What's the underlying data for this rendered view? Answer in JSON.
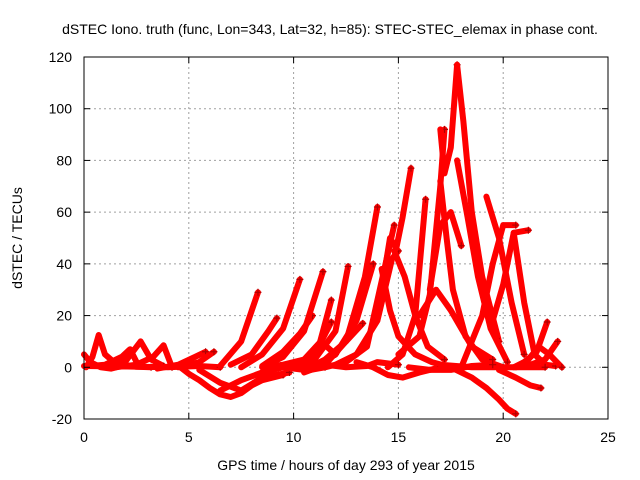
{
  "chart_data": {
    "type": "scatter",
    "title": "dSTEC Iono. truth (func, Lon=343, Lat=32, h=85): STEC-STEC_elemax in phase cont.",
    "xlabel": "GPS time / hours of day 293 of year 2015",
    "ylabel": "dSTEC  / TECUs",
    "xlim": [
      0,
      25
    ],
    "ylim": [
      -20,
      120
    ],
    "xticks": [
      0,
      5,
      10,
      15,
      20,
      25
    ],
    "yticks": [
      -20,
      0,
      20,
      40,
      60,
      80,
      100,
      120
    ],
    "grid": true,
    "marker": "plus",
    "series_color": "#ff0000",
    "series": [
      {
        "x": [
          0.0,
          0.3,
          0.8,
          1.3,
          1.8
        ],
        "y": [
          5.0,
          2.0,
          0.0,
          -0.5,
          0.5
        ]
      },
      {
        "x": [
          0.1,
          0.4,
          0.7,
          1.0,
          1.5,
          2.5,
          3.2
        ],
        "y": [
          0.0,
          4.0,
          12.5,
          5.0,
          1.5,
          0.2,
          0.0
        ]
      },
      {
        "x": [
          0.3,
          1.0,
          1.8,
          2.2,
          2.6
        ],
        "y": [
          0.5,
          1.0,
          4.0,
          7.0,
          0.5
        ]
      },
      {
        "x": [
          1.0,
          2.0,
          2.7,
          3.2,
          3.8
        ],
        "y": [
          0.3,
          2.5,
          10.0,
          3.0,
          0.5
        ]
      },
      {
        "x": [
          1.5,
          2.5,
          3.3,
          3.8,
          4.2
        ],
        "y": [
          0.0,
          1.0,
          4.0,
          8.5,
          0.0
        ]
      },
      {
        "x": [
          0.0,
          2.0,
          4.0,
          5.5,
          6.5
        ],
        "y": [
          0.5,
          0.3,
          0.0,
          0.5,
          0.0
        ]
      },
      {
        "x": [
          3.5,
          4.5,
          5.3,
          5.8
        ],
        "y": [
          -0.5,
          1.0,
          4.0,
          6.0
        ]
      },
      {
        "x": [
          4.5,
          5.5,
          6.2
        ],
        "y": [
          0.0,
          2.0,
          6.0
        ]
      },
      {
        "x": [
          4.6,
          5.0,
          5.5,
          6.0,
          6.5,
          7.0,
          7.5,
          8.0,
          8.5,
          9.5
        ],
        "y": [
          0.0,
          -2.5,
          -5.0,
          -8.0,
          -10.5,
          -11.5,
          -10.0,
          -7.0,
          -5.0,
          -3.0
        ]
      },
      {
        "x": [
          5.5,
          6.5,
          7.5,
          8.5,
          9.8
        ],
        "y": [
          -1.0,
          -6.0,
          -9.0,
          -4.0,
          -2.0
        ]
      },
      {
        "x": [
          6.5,
          7.5,
          8.5,
          9.5,
          10.5,
          11.5
        ],
        "y": [
          -9.0,
          -5.0,
          -2.0,
          0.0,
          0.0,
          0.0
        ]
      },
      {
        "x": [
          6.5,
          7.5,
          8.3
        ],
        "y": [
          0.5,
          10.0,
          29.0
        ]
      },
      {
        "x": [
          7.0,
          8.0,
          8.8,
          9.2
        ],
        "y": [
          1.0,
          5.0,
          14.0,
          19.0
        ]
      },
      {
        "x": [
          7.5,
          8.5,
          9.5,
          10.3
        ],
        "y": [
          0.0,
          5.0,
          15.0,
          34.0
        ]
      },
      {
        "x": [
          8.5,
          9.5,
          10.3,
          10.9
        ],
        "y": [
          0.5,
          6.0,
          13.0,
          20.0
        ]
      },
      {
        "x": [
          8.5,
          9.5,
          10.5,
          11.4
        ],
        "y": [
          0.0,
          4.0,
          14.0,
          37.0
        ]
      },
      {
        "x": [
          8.5,
          9.5,
          10.5,
          11.3,
          12.0
        ],
        "y": [
          0.0,
          1.0,
          3.0,
          10.0,
          5.0
        ]
      },
      {
        "x": [
          9.0,
          10.0,
          11.0,
          11.8
        ],
        "y": [
          0.0,
          1.0,
          5.0,
          17.5
        ]
      },
      {
        "x": [
          9.0,
          10.0,
          11.0,
          11.8
        ],
        "y": [
          0.5,
          0.5,
          2.0,
          26.0
        ]
      },
      {
        "x": [
          10.0,
          11.0,
          12.0,
          12.6
        ],
        "y": [
          0.0,
          3.0,
          14.0,
          39.0
        ]
      },
      {
        "x": [
          9.5,
          10.5,
          11.5,
          12.5,
          13.3
        ],
        "y": [
          0.0,
          -1.0,
          3.0,
          10.0,
          17.0
        ]
      },
      {
        "x": [
          10.5,
          11.5,
          12.5,
          13.4,
          14.0
        ],
        "y": [
          -2.0,
          1.0,
          10.0,
          35.0,
          62.0
        ]
      },
      {
        "x": [
          11.0,
          12.0,
          13.0,
          13.8
        ],
        "y": [
          0.0,
          5.0,
          18.0,
          40.0
        ]
      },
      {
        "x": [
          10.8,
          11.5,
          12.5,
          13.5,
          14.8
        ],
        "y": [
          -1.0,
          0.0,
          2.0,
          8.0,
          55.0
        ]
      },
      {
        "x": [
          12.0,
          13.0,
          14.0,
          14.7,
          15.0
        ],
        "y": [
          1.0,
          5.0,
          18.0,
          42.0,
          45.0
        ]
      },
      {
        "x": [
          14.3,
          14.6,
          14.9,
          15.2,
          15.6
        ],
        "y": [
          35.0,
          50.0,
          46.0,
          58.0,
          77.0
        ]
      },
      {
        "x": [
          14.8,
          15.3,
          15.8,
          16.4,
          17.2
        ],
        "y": [
          45.0,
          35.0,
          20.0,
          8.0,
          3.0
        ]
      },
      {
        "x": [
          14.2,
          14.6,
          15.0,
          15.8,
          16.6,
          17.5
        ],
        "y": [
          38.0,
          22.0,
          12.0,
          5.0,
          2.0,
          0.0
        ]
      },
      {
        "x": [
          13.0,
          13.8,
          14.5,
          15.2,
          16.0,
          17.0
        ],
        "y": [
          2.0,
          0.0,
          -3.0,
          -4.0,
          -2.0,
          0.0
        ]
      },
      {
        "x": [
          14.5,
          15.2,
          15.8,
          16.3
        ],
        "y": [
          0.0,
          5.0,
          20.0,
          65.0
        ]
      },
      {
        "x": [
          15.0,
          16.0,
          16.5,
          17.0,
          17.2
        ],
        "y": [
          5.0,
          12.0,
          28.0,
          70.0,
          92.0
        ]
      },
      {
        "x": [
          17.0,
          17.2,
          17.5,
          17.8
        ],
        "y": [
          92.0,
          75.0,
          85.0,
          117.0
        ]
      },
      {
        "x": [
          17.0,
          17.3,
          17.6,
          18.2,
          19.0,
          20.0
        ],
        "y": [
          72.0,
          50.0,
          30.0,
          12.0,
          3.0,
          0.0
        ]
      },
      {
        "x": [
          17.8,
          18.1,
          18.5,
          19.0,
          19.8
        ],
        "y": [
          117.0,
          95.0,
          60.0,
          35.0,
          10.0
        ]
      },
      {
        "x": [
          17.8,
          18.3,
          18.8,
          19.4,
          20.2
        ],
        "y": [
          80.0,
          58.0,
          35.0,
          15.0,
          2.0
        ]
      },
      {
        "x": [
          16.5,
          17.0,
          17.5,
          18.0
        ],
        "y": [
          30.0,
          55.0,
          60.0,
          47.0
        ]
      },
      {
        "x": [
          16.0,
          16.8,
          17.5,
          18.5,
          19.5
        ],
        "y": [
          20.0,
          30.0,
          22.0,
          8.0,
          3.0
        ]
      },
      {
        "x": [
          17.5,
          18.5,
          19.2,
          19.8,
          20.2,
          20.6
        ],
        "y": [
          0.0,
          -4.0,
          -8.0,
          -12.5,
          -16.0,
          -18.0
        ]
      },
      {
        "x": [
          18.0,
          19.0,
          19.5,
          20.0,
          20.6
        ],
        "y": [
          0.0,
          20.0,
          40.0,
          55.0,
          55.0
        ]
      },
      {
        "x": [
          19.2,
          19.8,
          20.4,
          21.0
        ],
        "y": [
          66.0,
          50.0,
          25.0,
          5.0
        ]
      },
      {
        "x": [
          19.5,
          20.0,
          20.5,
          21.2
        ],
        "y": [
          18.0,
          32.0,
          52.0,
          53.0
        ]
      },
      {
        "x": [
          20.5,
          21.0,
          21.5,
          22.0,
          22.5
        ],
        "y": [
          52.0,
          25.0,
          5.0,
          1.0,
          0.5
        ]
      },
      {
        "x": [
          20.5,
          21.0,
          21.6,
          22.1
        ],
        "y": [
          0.0,
          2.0,
          6.0,
          17.5
        ]
      },
      {
        "x": [
          20.8,
          21.3,
          22.0,
          22.6
        ],
        "y": [
          0.5,
          1.0,
          3.0,
          10.0
        ]
      },
      {
        "x": [
          20.6,
          21.2,
          21.7,
          22.2,
          22.8
        ],
        "y": [
          0.0,
          3.0,
          8.0,
          5.0,
          0.0
        ]
      },
      {
        "x": [
          19.8,
          20.6,
          21.3,
          21.8
        ],
        "y": [
          -1.0,
          -4.0,
          -7.0,
          -8.0
        ]
      },
      {
        "x": [
          17.0,
          18.5,
          20.0,
          21.0,
          22.0
        ],
        "y": [
          1.0,
          0.0,
          0.0,
          0.0,
          0.0
        ]
      },
      {
        "x": [
          15.5,
          16.5,
          17.5,
          18.5,
          19.5
        ],
        "y": [
          0.0,
          -1.0,
          -1.0,
          0.5,
          1.0
        ]
      },
      {
        "x": [
          11.5,
          12.5,
          13.5,
          14.0,
          15.0
        ],
        "y": [
          1.0,
          0.0,
          0.5,
          2.0,
          1.0
        ]
      }
    ]
  }
}
